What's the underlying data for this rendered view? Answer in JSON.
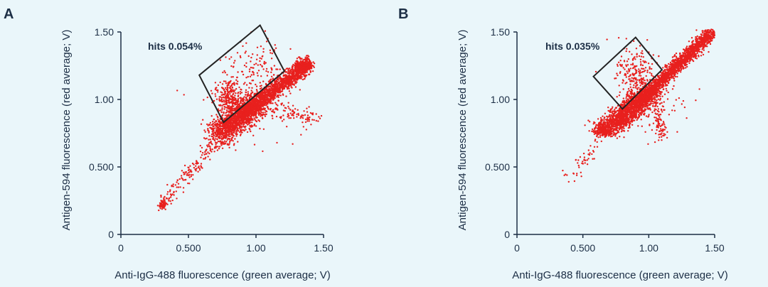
{
  "figure": {
    "background": "#eaf6fa",
    "point_color": "#e8201e",
    "axis_color": "#1c2e45",
    "gate_color": "#222222"
  },
  "chart_data": [
    {
      "panel_label": "A",
      "type": "scatter",
      "title": "",
      "xlabel": "Anti-IgG-488 fluorescence (green average; V)",
      "ylabel": "Antigen-594 fluorescence (red average; V)",
      "xlim": [
        0,
        1.5
      ],
      "ylim": [
        0,
        1.5
      ],
      "x_ticks": [
        0,
        0.5,
        1.0,
        1.5
      ],
      "x_tick_labels": [
        "0",
        "0.500",
        "1.00",
        "1.50"
      ],
      "y_ticks": [
        0,
        0.5,
        1.0,
        1.5
      ],
      "y_tick_labels": [
        "0",
        "0.500",
        "1.00",
        "1.50"
      ],
      "grid": false,
      "annotation": "hits 0.054%",
      "gate": {
        "shape": "polygon",
        "vertices": [
          [
            0.58,
            1.18
          ],
          [
            1.03,
            1.55
          ],
          [
            1.21,
            1.21
          ],
          [
            0.76,
            0.83
          ]
        ],
        "hits_percent": 0.054
      },
      "point_clusters": [
        {
          "name": "low-cluster",
          "center": [
            0.31,
            0.22
          ],
          "spread": [
            0.015,
            0.015
          ],
          "count": 60
        },
        {
          "name": "tail",
          "from": [
            0.3,
            0.22
          ],
          "to": [
            0.72,
            0.7
          ],
          "spread": 0.025,
          "count": 160
        },
        {
          "name": "main-body",
          "from": [
            0.72,
            0.74
          ],
          "to": [
            1.0,
            0.98
          ],
          "spread": [
            0.05,
            0.05
          ],
          "count": 1400
        },
        {
          "name": "diagonal-core",
          "from": [
            0.9,
            0.88
          ],
          "to": [
            1.38,
            1.26
          ],
          "spread": [
            0.03,
            0.03
          ],
          "count": 1500
        },
        {
          "name": "upper-tip",
          "center": [
            1.35,
            1.25
          ],
          "spread": [
            0.03,
            0.02
          ],
          "count": 250
        },
        {
          "name": "gated-hits",
          "center": [
            0.8,
            1.02
          ],
          "spread": [
            0.04,
            0.07
          ],
          "count": 220
        },
        {
          "name": "gated-sparse",
          "center": [
            0.98,
            1.22
          ],
          "spread": [
            0.1,
            0.12
          ],
          "count": 120
        },
        {
          "name": "right-branch",
          "from": [
            1.0,
            0.92
          ],
          "to": [
            1.48,
            0.85
          ],
          "spread": 0.03,
          "count": 110
        },
        {
          "name": "scatter-halo",
          "center": [
            1.0,
            1.0
          ],
          "spread": [
            0.18,
            0.14
          ],
          "count": 120
        }
      ]
    },
    {
      "panel_label": "B",
      "type": "scatter",
      "title": "",
      "xlabel": "Anti-IgG-488 fluorescence (green average; V)",
      "ylabel": "Antigen-594 fluorescence (red average; V)",
      "xlim": [
        0,
        1.5
      ],
      "ylim": [
        0,
        1.5
      ],
      "x_ticks": [
        0,
        0.5,
        1.0,
        1.5
      ],
      "x_tick_labels": [
        "0",
        "0.500",
        "1.00",
        "1.50"
      ],
      "y_ticks": [
        0,
        0.5,
        1.0,
        1.5
      ],
      "y_tick_labels": [
        "0",
        "0.500",
        "1.00",
        "1.50"
      ],
      "grid": false,
      "annotation": "hits 0.035%",
      "gate": {
        "shape": "polygon",
        "vertices": [
          [
            0.58,
            1.17
          ],
          [
            0.9,
            1.46
          ],
          [
            1.1,
            1.22
          ],
          [
            0.8,
            0.93
          ]
        ],
        "hits_percent": 0.035
      },
      "point_clusters": [
        {
          "name": "lower-left-tail",
          "from": [
            0.4,
            0.4
          ],
          "to": [
            0.62,
            0.7
          ],
          "spread": 0.03,
          "count": 45
        },
        {
          "name": "left-blob",
          "center": [
            0.66,
            0.78
          ],
          "spread": [
            0.04,
            0.03
          ],
          "count": 320
        },
        {
          "name": "main-body",
          "from": [
            0.72,
            0.8
          ],
          "to": [
            1.0,
            1.05
          ],
          "spread": [
            0.045,
            0.04
          ],
          "count": 1400
        },
        {
          "name": "diagonal-core",
          "from": [
            0.95,
            1.0
          ],
          "to": [
            1.48,
            1.5
          ],
          "spread": [
            0.025,
            0.025
          ],
          "count": 1700
        },
        {
          "name": "gated-hits",
          "center": [
            0.9,
            1.2
          ],
          "spread": [
            0.07,
            0.1
          ],
          "count": 200
        },
        {
          "name": "down-branch",
          "from": [
            1.05,
            1.0
          ],
          "to": [
            1.1,
            0.72
          ],
          "spread": 0.02,
          "count": 90
        },
        {
          "name": "scatter-halo",
          "center": [
            1.0,
            1.0
          ],
          "spread": [
            0.16,
            0.14
          ],
          "count": 120
        }
      ]
    }
  ]
}
